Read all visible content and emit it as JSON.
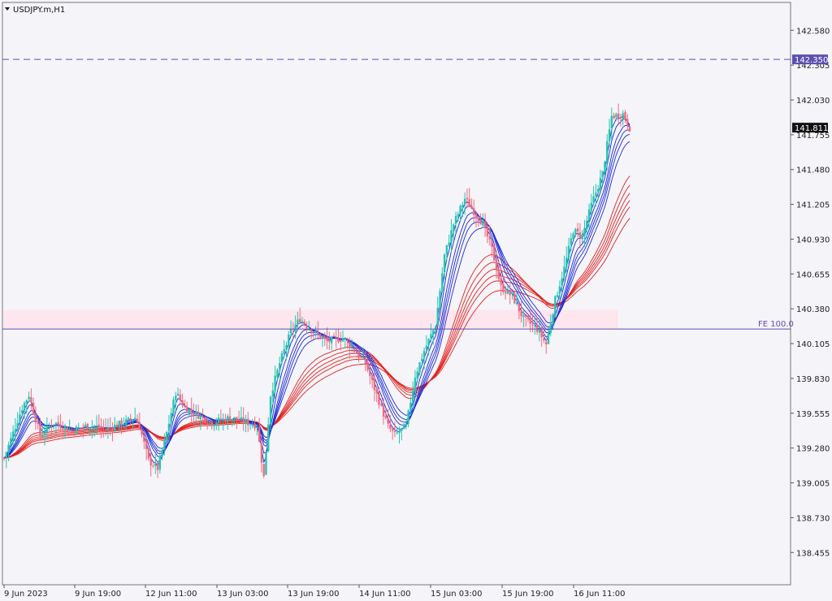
{
  "window": {
    "title": "USDJPY.m,H1"
  },
  "colors": {
    "background": "#f5f4f9",
    "grid_frame": "#777777",
    "bull_candle": "#26c6b0",
    "bear_candle": "#f06b7f",
    "fast_ma": "#1a2ad6",
    "slow_ma": "#e0201c",
    "level_line": "#5b4fb0",
    "zone_fill": "#fde6ee"
  },
  "chart_data": {
    "type": "candlestick",
    "symbol": "USDJPY.m",
    "timeframe": "H1",
    "ylim": [
      138.2,
      142.8
    ],
    "y_ticks": [
      "142.580",
      "142.305",
      "142.030",
      "141.755",
      "141.480",
      "141.205",
      "140.930",
      "140.655",
      "140.380",
      "140.105",
      "139.830",
      "139.555",
      "139.280",
      "139.005",
      "138.730",
      "138.455"
    ],
    "x_ticks": [
      "9 Jun 2023",
      "9 Jun 19:00",
      "12 Jun 11:00",
      "13 Jun 03:00",
      "13 Jun 19:00",
      "14 Jun 11:00",
      "15 Jun 03:00",
      "15 Jun 19:00",
      "16 Jun 11:00"
    ],
    "current_price": "141.811",
    "horizontal_line": {
      "price": "142.350",
      "style": "dashed"
    },
    "fe_line": {
      "label": "FE 100.0",
      "price": 140.22
    },
    "highlight_zone": {
      "from": 140.22,
      "to": 140.37
    },
    "close_path": [
      [
        0,
        139.2
      ],
      [
        8,
        139.6
      ],
      [
        11,
        139.7
      ],
      [
        16,
        139.38
      ],
      [
        22,
        139.48
      ],
      [
        30,
        139.42
      ],
      [
        38,
        139.46
      ],
      [
        45,
        139.43
      ],
      [
        53,
        139.48
      ],
      [
        58,
        139.52
      ],
      [
        60,
        139.45
      ],
      [
        64,
        139.18
      ],
      [
        68,
        139.12
      ],
      [
        72,
        139.4
      ],
      [
        76,
        139.72
      ],
      [
        80,
        139.6
      ],
      [
        85,
        139.55
      ],
      [
        92,
        139.48
      ],
      [
        100,
        139.52
      ],
      [
        108,
        139.48
      ],
      [
        112,
        139.46
      ],
      [
        115,
        139.05
      ],
      [
        118,
        139.7
      ],
      [
        122,
        139.95
      ],
      [
        127,
        140.2
      ],
      [
        131,
        140.3
      ],
      [
        137,
        140.2
      ],
      [
        143,
        140.12
      ],
      [
        150,
        140.15
      ],
      [
        155,
        140.05
      ],
      [
        160,
        139.95
      ],
      [
        165,
        139.7
      ],
      [
        170,
        139.45
      ],
      [
        173,
        139.38
      ],
      [
        178,
        139.45
      ],
      [
        182,
        139.85
      ],
      [
        186,
        140.05
      ],
      [
        191,
        140.25
      ],
      [
        195,
        140.8
      ],
      [
        199,
        141.05
      ],
      [
        204,
        141.25
      ],
      [
        208,
        141.15
      ],
      [
        212,
        141.05
      ],
      [
        216,
        140.85
      ],
      [
        220,
        140.55
      ],
      [
        225,
        140.48
      ],
      [
        230,
        140.3
      ],
      [
        236,
        140.22
      ],
      [
        240,
        140.1
      ],
      [
        244,
        140.45
      ],
      [
        248,
        140.7
      ],
      [
        252,
        141.0
      ],
      [
        256,
        140.95
      ],
      [
        260,
        141.2
      ],
      [
        265,
        141.45
      ],
      [
        269,
        141.9
      ],
      [
        274,
        141.92
      ],
      [
        277,
        141.81
      ]
    ]
  }
}
